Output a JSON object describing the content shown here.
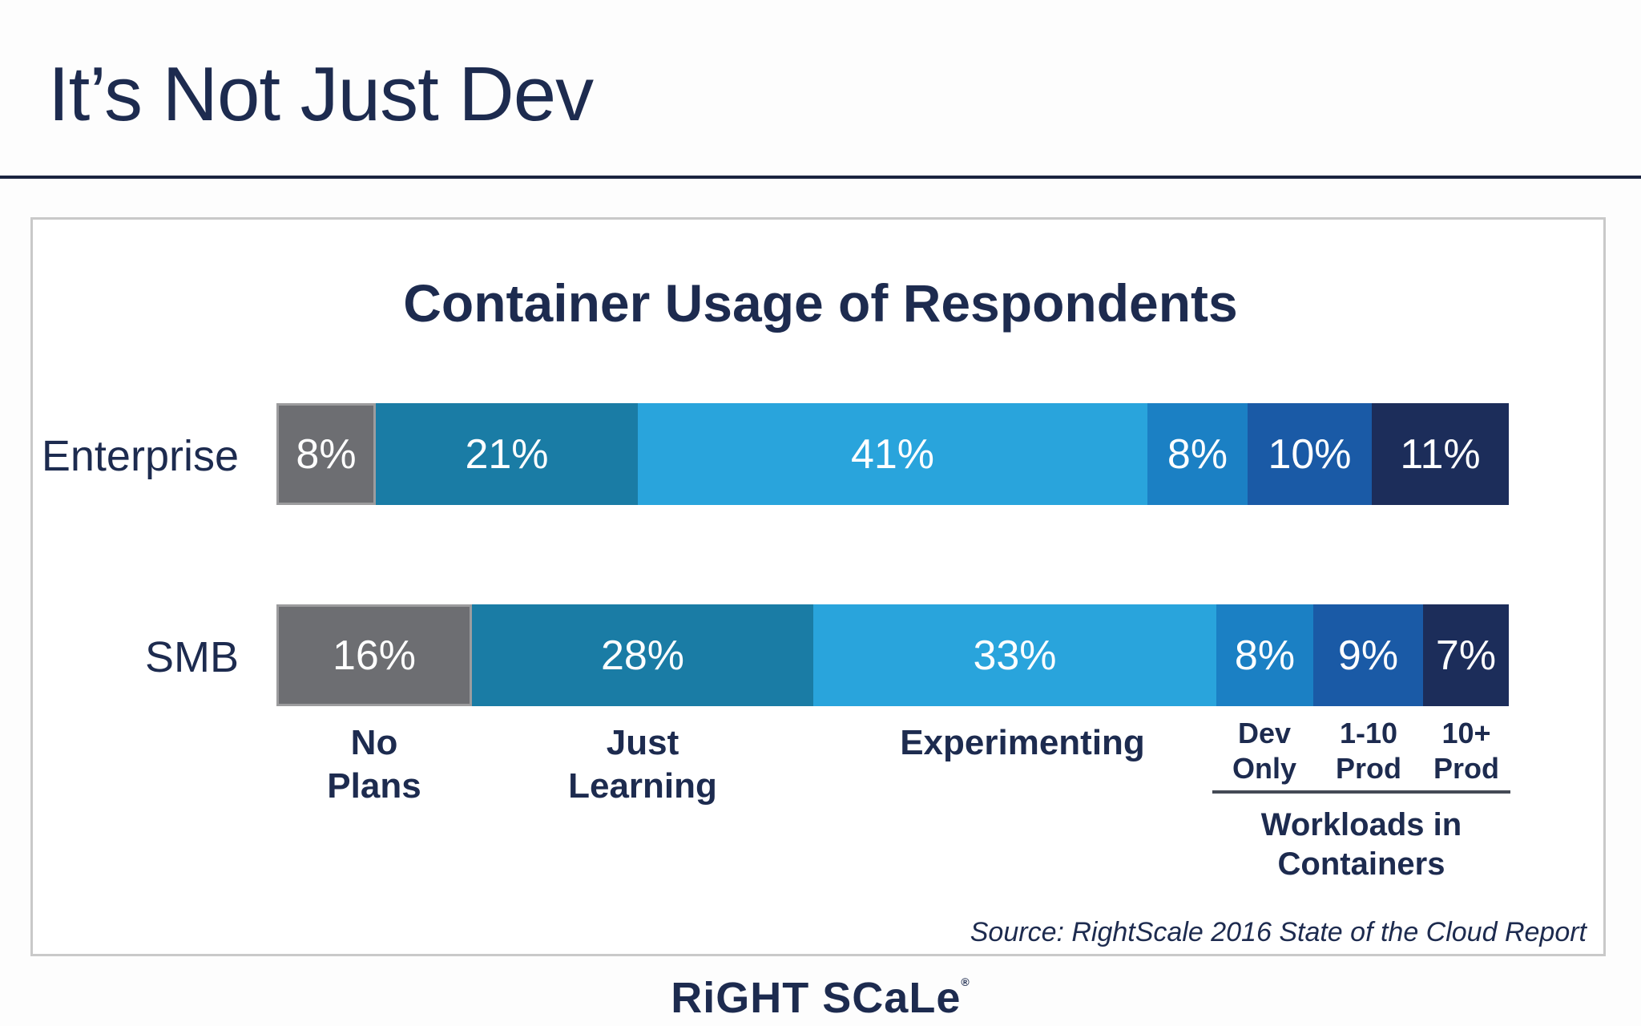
{
  "slide": {
    "title": "It’s Not Just Dev",
    "source": "Source: RightScale 2016 State of the Cloud Report",
    "logo_text": "RiGHT SCaLe",
    "logo_mark": "®"
  },
  "chart_data": {
    "type": "bar",
    "orientation": "horizontal",
    "stacked": true,
    "title": "Container Usage of Respondents",
    "rows": [
      "Enterprise",
      "SMB"
    ],
    "categories": [
      "No Plans",
      "Just Learning",
      "Experimenting",
      "Dev Only",
      "1-10 Prod",
      "10+ Prod"
    ],
    "category_lines": [
      [
        "No",
        "Plans"
      ],
      [
        "Just",
        "Learning"
      ],
      [
        "Experimenting"
      ],
      [
        "Dev",
        "Only"
      ],
      [
        "1-10",
        "Prod"
      ],
      [
        "10+",
        "Prod"
      ]
    ],
    "series": [
      {
        "name": "Enterprise",
        "values": [
          8,
          21,
          41,
          8,
          10,
          11
        ],
        "labels": [
          "8%",
          "21%",
          "41%",
          "8%",
          "10%",
          "11%"
        ]
      },
      {
        "name": "SMB",
        "values": [
          16,
          28,
          33,
          8,
          9,
          7
        ],
        "labels": [
          "16%",
          "28%",
          "33%",
          "8%",
          "9%",
          "7%"
        ]
      }
    ],
    "group_label": "Workloads in Containers",
    "colors": [
      "#6d6e72",
      "#1a7ca5",
      "#29a4dc",
      "#1b80c4",
      "#1a5aa6",
      "#1c2d5a"
    ],
    "legend": "none",
    "grid": false
  }
}
